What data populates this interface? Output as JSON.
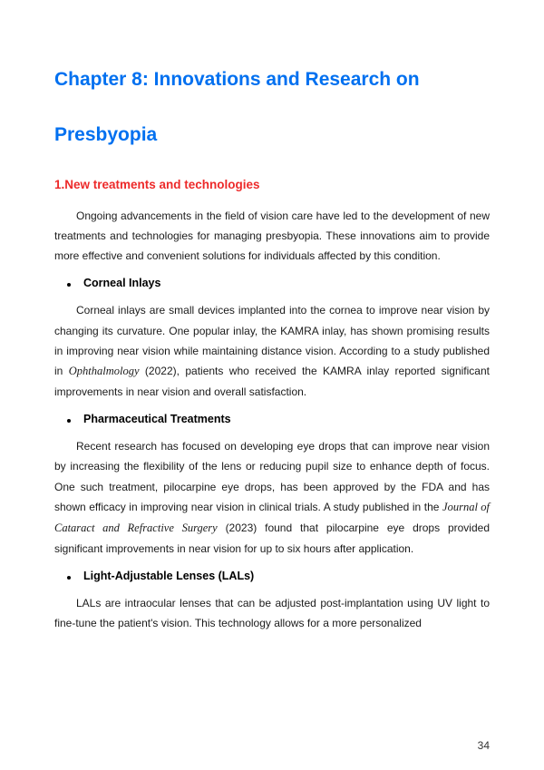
{
  "chapter_title_line1": "Chapter 8: Innovations and Research on",
  "chapter_title_line2": "Presbyopia",
  "section_heading": "1.New treatments and technologies",
  "intro_paragraph": "Ongoing advancements in the field of vision care have led to the development of new treatments and technologies for managing presbyopia. These innovations aim to provide more effective and convenient solutions for individuals affected by this condition.",
  "b1_title": "Corneal Inlays",
  "b1_para_a": "Corneal inlays are small devices implanted into the cornea to improve near vision by changing its curvature. One popular inlay, the KAMRA inlay, has shown promising results in improving near vision while maintaining distance vision. According to a study published in ",
  "b1_journal": "Ophthalmology",
  "b1_para_b": " (2022), patients who received the KAMRA inlay reported significant improvements in near vision and overall satisfaction.",
  "b2_title": "Pharmaceutical Treatments",
  "b2_para_a": "Recent research has focused on developing eye drops that can improve near vision by increasing the flexibility of the lens or reducing pupil size to enhance depth of focus. One such treatment, pilocarpine eye drops, has been approved by the FDA and has shown efficacy in improving near vision in clinical trials. A study published in the ",
  "b2_journal": "Journal of Cataract and Refractive Surgery",
  "b2_para_b": " (2023) found that pilocarpine eye drops provided significant improvements in near vision for up to six hours after application.",
  "b3_title": "Light-Adjustable Lenses (LALs)",
  "b3_para": "LALs are intraocular lenses that can be adjusted post-implantation using UV light to fine-tune the patient's vision. This technology allows for a more personalized",
  "page_number": "34",
  "colors": {
    "title": "#0070f0",
    "section": "#ed2a2a",
    "body": "#1a1a1a",
    "background": "#ffffff"
  },
  "fontsizes": {
    "title": 21,
    "section": 13.5,
    "body": 12,
    "bullet": 12.5
  }
}
